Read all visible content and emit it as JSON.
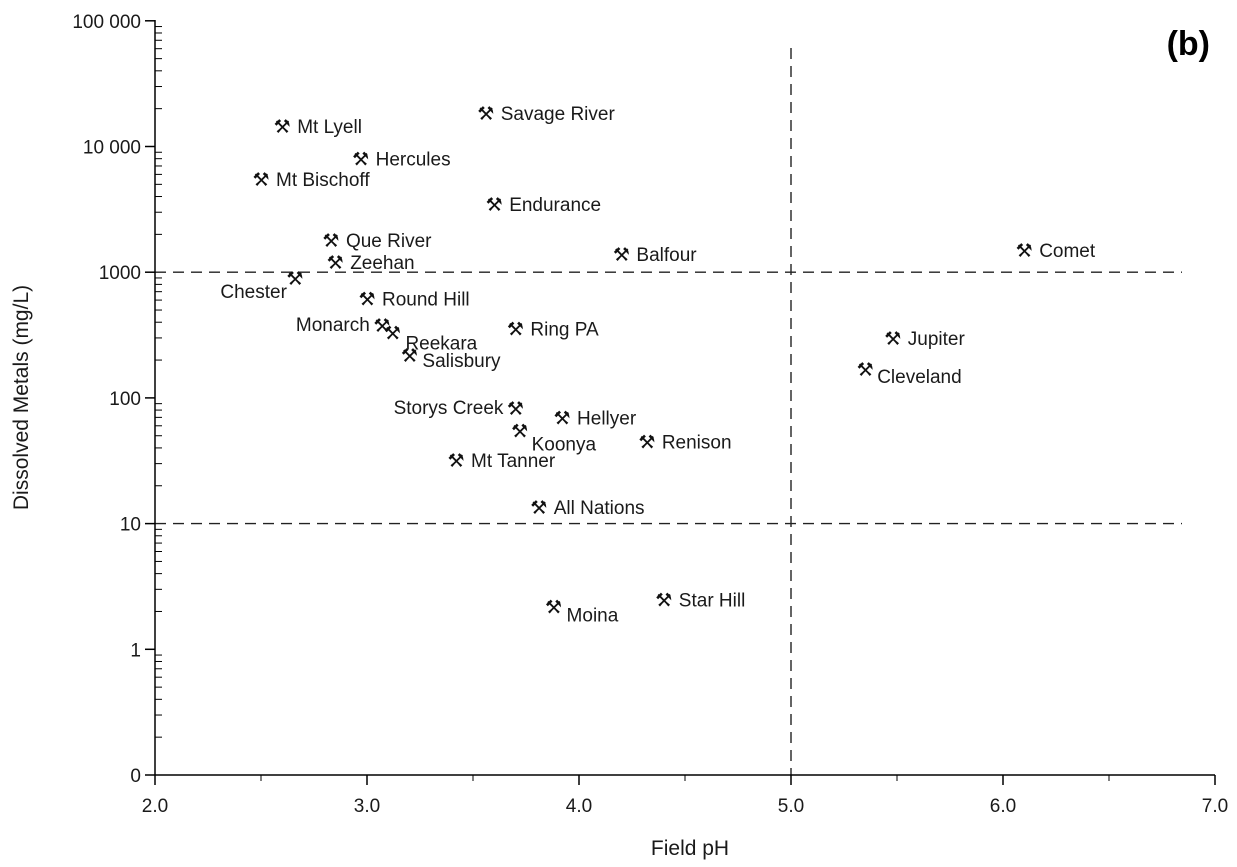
{
  "chart_data": {
    "type": "scatter",
    "title": "",
    "panel_label": "(b)",
    "xlabel": "Field pH",
    "ylabel": "Dissolved Metals (mg/L)",
    "xlim": [
      2.0,
      7.0
    ],
    "ylim": [
      0,
      100000
    ],
    "y_scale": "log (with 0 at base)",
    "x_ticks": [
      "2.0",
      "3.0",
      "4.0",
      "5.0",
      "6.0",
      "7.0"
    ],
    "y_ticks": [
      "0",
      "1",
      "10",
      "100",
      "1000",
      "10 000",
      "100 000"
    ],
    "reference_lines": {
      "x": [
        5.0
      ],
      "y": [
        10,
        1000
      ]
    },
    "marker_icon": "pick-and-hammer-icon",
    "points": [
      {
        "name": "Mt Lyell",
        "x": 2.6,
        "y": 14500
      },
      {
        "name": "Savage River",
        "x": 3.56,
        "y": 18500
      },
      {
        "name": "Hercules",
        "x": 2.97,
        "y": 8000
      },
      {
        "name": "Mt Bischoff",
        "x": 2.5,
        "y": 5500
      },
      {
        "name": "Endurance",
        "x": 3.6,
        "y": 3500
      },
      {
        "name": "Que River",
        "x": 2.83,
        "y": 1800
      },
      {
        "name": "Zeehan",
        "x": 2.85,
        "y": 1200
      },
      {
        "name": "Balfour",
        "x": 4.2,
        "y": 1400
      },
      {
        "name": "Comet",
        "x": 6.1,
        "y": 1500
      },
      {
        "name": "Chester",
        "x": 2.66,
        "y": 900
      },
      {
        "name": "Round Hill",
        "x": 3.0,
        "y": 620
      },
      {
        "name": "Monarch",
        "x": 3.07,
        "y": 380
      },
      {
        "name": "Reekara",
        "x": 3.12,
        "y": 330
      },
      {
        "name": "Ring PA",
        "x": 3.7,
        "y": 355
      },
      {
        "name": "Salisbury",
        "x": 3.2,
        "y": 220
      },
      {
        "name": "Jupiter",
        "x": 5.48,
        "y": 300
      },
      {
        "name": "Cleveland",
        "x": 5.35,
        "y": 170
      },
      {
        "name": "Storys Creek",
        "x": 3.7,
        "y": 83
      },
      {
        "name": "Hellyer",
        "x": 3.92,
        "y": 70
      },
      {
        "name": "Koonya",
        "x": 3.72,
        "y": 55
      },
      {
        "name": "Renison",
        "x": 4.32,
        "y": 45
      },
      {
        "name": "Mt Tanner",
        "x": 3.42,
        "y": 32
      },
      {
        "name": "All Nations",
        "x": 3.81,
        "y": 13.5
      },
      {
        "name": "Moina",
        "x": 3.88,
        "y": 2.2
      },
      {
        "name": "Star Hill",
        "x": 4.4,
        "y": 2.5
      }
    ]
  }
}
